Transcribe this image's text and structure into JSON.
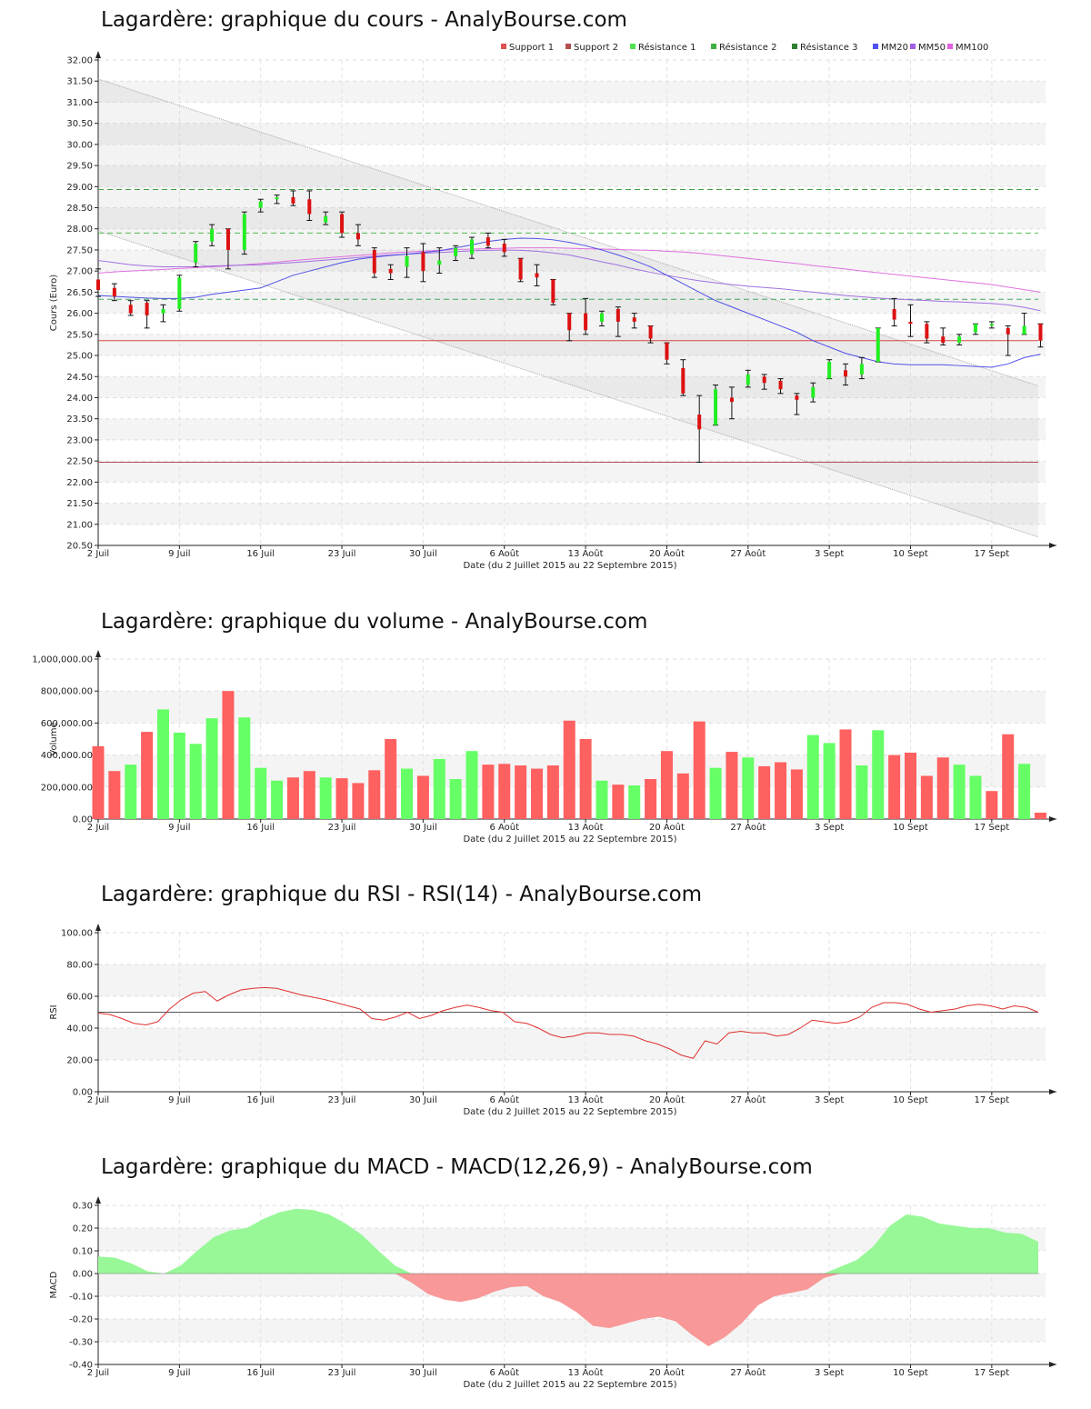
{
  "chart_data": [
    {
      "type": "candlestick",
      "title": "Lagardère: graphique du cours - AnalyBourse.com",
      "xlabel": "Date (du 2 Juillet 2015 au 22 Septembre 2015)",
      "ylabel": "Cours (Euro)",
      "ylim": [
        20.5,
        32.0
      ],
      "yticks": [
        "32.00",
        "31.50",
        "31.00",
        "30.50",
        "30.00",
        "29.50",
        "29.00",
        "28.50",
        "28.00",
        "27.50",
        "27.00",
        "26.50",
        "26.00",
        "25.50",
        "25.00",
        "24.50",
        "24.00",
        "23.50",
        "23.00",
        "22.50",
        "22.00",
        "21.50",
        "21.00",
        "20.50"
      ],
      "xticks": [
        {
          "i": 0,
          "label": "2 Juil"
        },
        {
          "i": 5,
          "label": "9 Juil"
        },
        {
          "i": 10,
          "label": "16 Juil"
        },
        {
          "i": 15,
          "label": "23 Juil"
        },
        {
          "i": 20,
          "label": "30 Juil"
        },
        {
          "i": 25,
          "label": "6 Août"
        },
        {
          "i": 30,
          "label": "13 Août"
        },
        {
          "i": 35,
          "label": "20 Août"
        },
        {
          "i": 40,
          "label": "27 Août"
        },
        {
          "i": 45,
          "label": "3 Sept"
        },
        {
          "i": 50,
          "label": "10 Sept"
        },
        {
          "i": 55,
          "label": "17 Sept"
        }
      ],
      "grid": true,
      "legend_position": "top-right",
      "legend": [
        {
          "name": "Support 1",
          "color": "#e05050"
        },
        {
          "name": "Support 2",
          "color": "#b05050"
        },
        {
          "name": "Résistance 1",
          "color": "#50e050"
        },
        {
          "name": "Résistance 2",
          "color": "#40b040"
        },
        {
          "name": "Résistance 3",
          "color": "#308030"
        },
        {
          "name": "MM20",
          "color": "#5050f0"
        },
        {
          "name": "MM50",
          "color": "#a060e0"
        },
        {
          "name": "MM100",
          "color": "#e060e0"
        }
      ],
      "levels": {
        "support1": 25.35,
        "support2": 22.47,
        "resistance1": 26.33,
        "resistance2": 27.9,
        "resistance3": 28.93
      },
      "candles": [
        [
          26.8,
          27.05,
          26.4,
          26.55
        ],
        [
          26.6,
          26.7,
          26.3,
          26.4
        ],
        [
          26.2,
          26.3,
          25.95,
          26.0
        ],
        [
          26.25,
          26.3,
          25.65,
          25.95
        ],
        [
          26.0,
          26.2,
          25.8,
          26.1
        ],
        [
          26.1,
          26.9,
          26.05,
          26.85
        ],
        [
          27.2,
          27.7,
          27.1,
          27.65
        ],
        [
          27.7,
          28.1,
          27.6,
          28.0
        ],
        [
          28.0,
          28.0,
          27.05,
          27.5
        ],
        [
          27.5,
          28.4,
          27.4,
          28.35
        ],
        [
          28.5,
          28.7,
          28.4,
          28.65
        ],
        [
          28.7,
          28.8,
          28.6,
          28.75
        ],
        [
          28.75,
          28.9,
          28.55,
          28.6
        ],
        [
          28.7,
          28.9,
          28.2,
          28.35
        ],
        [
          28.15,
          28.4,
          28.1,
          28.3
        ],
        [
          28.35,
          28.4,
          27.8,
          27.9
        ],
        [
          27.9,
          28.1,
          27.6,
          27.75
        ],
        [
          27.5,
          27.55,
          26.85,
          26.95
        ],
        [
          27.05,
          27.15,
          26.8,
          26.95
        ],
        [
          27.1,
          27.55,
          26.85,
          27.35
        ],
        [
          27.45,
          27.65,
          26.75,
          27.0
        ],
        [
          27.15,
          27.55,
          26.95,
          27.25
        ],
        [
          27.35,
          27.6,
          27.25,
          27.55
        ],
        [
          27.4,
          27.8,
          27.3,
          27.75
        ],
        [
          27.8,
          27.9,
          27.55,
          27.6
        ],
        [
          27.65,
          27.75,
          27.35,
          27.45
        ],
        [
          27.3,
          27.3,
          26.75,
          26.8
        ],
        [
          26.95,
          27.15,
          26.65,
          26.85
        ],
        [
          26.8,
          26.8,
          26.2,
          26.25
        ],
        [
          26.0,
          26.0,
          25.35,
          25.6
        ],
        [
          26.0,
          26.35,
          25.5,
          25.6
        ],
        [
          25.8,
          26.05,
          25.7,
          26.0
        ],
        [
          26.1,
          26.15,
          25.45,
          25.8
        ],
        [
          25.9,
          26.0,
          25.65,
          25.8
        ],
        [
          25.7,
          25.7,
          25.3,
          25.4
        ],
        [
          25.3,
          25.3,
          24.8,
          24.9
        ],
        [
          24.7,
          24.9,
          24.05,
          24.1
        ],
        [
          23.6,
          24.05,
          22.47,
          23.25
        ],
        [
          23.35,
          24.3,
          23.35,
          24.2
        ],
        [
          24.0,
          24.25,
          23.5,
          23.9
        ],
        [
          24.3,
          24.65,
          24.25,
          24.55
        ],
        [
          24.5,
          24.55,
          24.2,
          24.35
        ],
        [
          24.4,
          24.45,
          24.1,
          24.2
        ],
        [
          24.05,
          24.1,
          23.6,
          23.95
        ],
        [
          24.0,
          24.35,
          23.9,
          24.25
        ],
        [
          24.45,
          24.9,
          24.45,
          24.85
        ],
        [
          24.65,
          24.8,
          24.3,
          24.5
        ],
        [
          24.55,
          24.95,
          24.45,
          24.8
        ],
        [
          24.85,
          25.65,
          24.85,
          25.65
        ],
        [
          26.1,
          26.35,
          25.7,
          25.85
        ],
        [
          25.8,
          26.2,
          25.45,
          25.75
        ],
        [
          25.75,
          25.8,
          25.3,
          25.4
        ],
        [
          25.45,
          25.65,
          25.25,
          25.3
        ],
        [
          25.3,
          25.5,
          25.25,
          25.45
        ],
        [
          25.55,
          25.75,
          25.5,
          25.75
        ],
        [
          25.75,
          25.8,
          25.65,
          25.75
        ],
        [
          25.65,
          25.7,
          25.0,
          25.5
        ],
        [
          25.5,
          26.0,
          25.5,
          25.7
        ],
        [
          25.75,
          25.75,
          25.2,
          25.35
        ]
      ],
      "mm20": [
        26.42,
        26.4,
        26.38,
        26.36,
        26.35,
        26.35,
        26.38,
        26.45,
        26.5,
        26.55,
        26.6,
        26.75,
        26.9,
        27.0,
        27.1,
        27.2,
        27.28,
        27.33,
        27.37,
        27.4,
        27.44,
        27.48,
        27.55,
        27.62,
        27.7,
        27.75,
        27.78,
        27.77,
        27.74,
        27.68,
        27.6,
        27.5,
        27.38,
        27.25,
        27.1,
        26.9,
        26.7,
        26.5,
        26.3,
        26.15,
        26.0,
        25.85,
        25.7,
        25.55,
        25.35,
        25.2,
        25.05,
        24.95,
        24.85,
        24.8,
        24.78,
        24.78,
        24.78,
        24.76,
        24.74,
        24.72,
        24.8,
        24.95,
        25.03
      ],
      "mm50": [
        27.25,
        27.2,
        27.15,
        27.12,
        27.1,
        27.1,
        27.1,
        27.12,
        27.13,
        27.14,
        27.15,
        27.18,
        27.2,
        27.23,
        27.26,
        27.29,
        27.32,
        27.35,
        27.38,
        27.4,
        27.42,
        27.44,
        27.46,
        27.48,
        27.49,
        27.5,
        27.49,
        27.47,
        27.43,
        27.38,
        27.3,
        27.22,
        27.14,
        27.05,
        26.97,
        26.9,
        26.83,
        26.77,
        26.72,
        26.68,
        26.64,
        26.61,
        26.58,
        26.54,
        26.5,
        26.46,
        26.42,
        26.39,
        26.36,
        26.34,
        26.32,
        26.3,
        26.28,
        26.27,
        26.25,
        26.23,
        26.2,
        26.14,
        26.06
      ],
      "mm100": [
        26.95,
        26.98,
        27.0,
        27.02,
        27.04,
        27.06,
        27.08,
        27.1,
        27.12,
        27.15,
        27.18,
        27.21,
        27.25,
        27.28,
        27.31,
        27.34,
        27.37,
        27.4,
        27.43,
        27.45,
        27.47,
        27.49,
        27.51,
        27.52,
        27.53,
        27.54,
        27.55,
        27.55,
        27.55,
        27.54,
        27.53,
        27.52,
        27.51,
        27.5,
        27.49,
        27.47,
        27.45,
        27.42,
        27.38,
        27.34,
        27.3,
        27.26,
        27.22,
        27.18,
        27.13,
        27.09,
        27.05,
        27.0,
        26.96,
        26.92,
        26.88,
        26.84,
        26.8,
        26.76,
        26.72,
        26.68,
        26.62,
        26.56,
        26.5
      ],
      "channel": {
        "upper": [
          31.55,
          24.28
        ],
        "lower": [
          27.95,
          20.7
        ]
      }
    },
    {
      "type": "bar",
      "title": "Lagardère: graphique du volume - AnalyBourse.com",
      "xlabel": "Date (du 2 Juillet 2015 au 22 Septembre 2015)",
      "ylabel": "Volume",
      "ylim": [
        0,
        1000000
      ],
      "yticks": [
        "1,000,000.00",
        "800,000.00",
        "600,000.00",
        "400,000.00",
        "200,000.00",
        "0.00"
      ],
      "grid": true,
      "values": [
        455000,
        300000,
        340000,
        545000,
        685000,
        540000,
        470000,
        630000,
        800000,
        635000,
        320000,
        240000,
        260000,
        300000,
        260000,
        255000,
        225000,
        305000,
        500000,
        315000,
        270000,
        375000,
        250000,
        425000,
        340000,
        345000,
        335000,
        315000,
        335000,
        615000,
        500000,
        240000,
        215000,
        210000,
        250000,
        425000,
        285000,
        610000,
        320000,
        420000,
        385000,
        330000,
        355000,
        310000,
        525000,
        475000,
        560000,
        335000,
        555000,
        400000,
        415000,
        270000,
        385000,
        340000,
        270000,
        175000,
        530000,
        345000,
        40000
      ],
      "colors": [
        "r",
        "r",
        "g",
        "r",
        "g",
        "g",
        "g",
        "g",
        "r",
        "g",
        "g",
        "g",
        "r",
        "r",
        "g",
        "r",
        "r",
        "r",
        "r",
        "g",
        "r",
        "g",
        "g",
        "g",
        "r",
        "r",
        "r",
        "r",
        "r",
        "r",
        "r",
        "g",
        "r",
        "g",
        "r",
        "r",
        "r",
        "r",
        "g",
        "r",
        "g",
        "r",
        "r",
        "r",
        "g",
        "g",
        "r",
        "g",
        "g",
        "r",
        "r",
        "r",
        "r",
        "g",
        "g",
        "r",
        "r",
        "g",
        "r"
      ]
    },
    {
      "type": "line",
      "title": "Lagardère: graphique du RSI - RSI(14) - AnalyBourse.com",
      "xlabel": "Date (du 2 Juillet 2015 au 22 Septembre 2015)",
      "ylabel": "RSI",
      "ylim": [
        0,
        100
      ],
      "yticks": [
        "100.00",
        "80.00",
        "60.00",
        "40.00",
        "20.00",
        "0.00"
      ],
      "grid": true,
      "reference": 50,
      "values": [
        49.5,
        48.5,
        46,
        43,
        42,
        44,
        52,
        58,
        62,
        63,
        57,
        61,
        64,
        65,
        65.5,
        65,
        63,
        61,
        59.5,
        58,
        56,
        54,
        52,
        46,
        45,
        47,
        50,
        46,
        48,
        51,
        53,
        54.5,
        53,
        51,
        50,
        44,
        43,
        40,
        36,
        34,
        35,
        37,
        37,
        36,
        36,
        35,
        32,
        30,
        27,
        23,
        21,
        32,
        30,
        37,
        38,
        37,
        37,
        35,
        36,
        40,
        45,
        44,
        43,
        44,
        47,
        53,
        56,
        56,
        55,
        52,
        50,
        51,
        52,
        54,
        55,
        54,
        52,
        54,
        53,
        50
      ]
    },
    {
      "type": "area",
      "title": "Lagardère: graphique du MACD - MACD(12,26,9) - AnalyBourse.com",
      "xlabel": "Date (du 2 Juillet 2015 au 22 Septembre 2015)",
      "ylabel": "MACD",
      "ylim": [
        -0.4,
        0.3
      ],
      "yticks": [
        "0.30",
        "0.20",
        "0.10",
        "0.00",
        "-0.10",
        "-0.20",
        "-0.30",
        "-0.40"
      ],
      "grid": true,
      "values": [
        0.075,
        0.07,
        0.045,
        0.01,
        0.0,
        0.035,
        0.1,
        0.16,
        0.19,
        0.2,
        0.24,
        0.27,
        0.285,
        0.28,
        0.26,
        0.22,
        0.17,
        0.1,
        0.035,
        -0.04,
        -0.09,
        -0.115,
        -0.125,
        -0.11,
        -0.08,
        -0.06,
        -0.055,
        -0.1,
        -0.125,
        -0.17,
        -0.23,
        -0.24,
        -0.22,
        -0.2,
        -0.19,
        -0.21,
        -0.27,
        -0.32,
        -0.28,
        -0.22,
        -0.14,
        -0.1,
        -0.085,
        -0.07,
        -0.02,
        0.03,
        0.06,
        0.12,
        0.21,
        0.26,
        0.25,
        0.22,
        0.21,
        0.2,
        0.2,
        0.18,
        0.175,
        0.14
      ],
      "colors": {
        "positive": "#98f898",
        "negative": "#f89898"
      }
    }
  ]
}
